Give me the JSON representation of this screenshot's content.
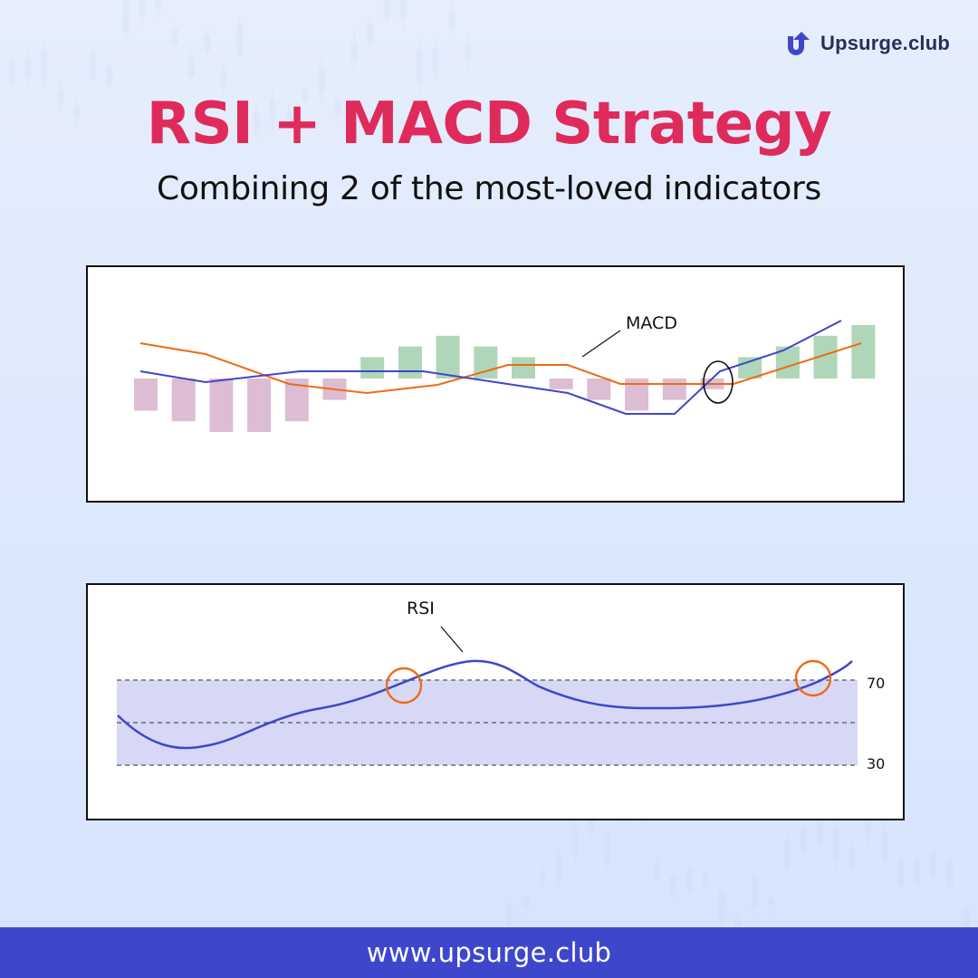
{
  "brand": {
    "name": "Upsurge.club",
    "icon": "upsurge-logo-icon",
    "color": "#3e47cc"
  },
  "title": "RSI + MACD Strategy",
  "subtitle": "Combining 2 of the most-loved indicators",
  "footer": {
    "url": "www.upsurge.club"
  },
  "colors": {
    "title": "#df2b5c",
    "macd_line": "#3f47c8",
    "signal_line": "#ee6b14",
    "histogram_positive": "#afd6b8",
    "histogram_negative": "#dcbdd3",
    "rsi_line": "#3f47c8",
    "rsi_band": "#d6d8f6",
    "highlight_circle": "#ee6b14"
  },
  "macd": {
    "label": "MACD",
    "histogram": [
      -3,
      -4,
      -5,
      -5,
      -4,
      -2,
      2,
      3,
      4,
      3,
      2,
      -1,
      -2,
      -3,
      -2,
      -1,
      2,
      3,
      4,
      5
    ],
    "highlight": "crossover"
  },
  "rsi": {
    "label": "RSI",
    "levels": [
      "70",
      "30"
    ],
    "highlights": 2
  }
}
